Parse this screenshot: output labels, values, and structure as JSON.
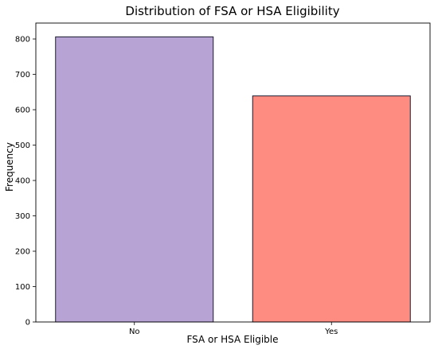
{
  "chart_data": {
    "type": "bar",
    "title": "Distribution of FSA or HSA Eligibility",
    "xlabel": "FSA or HSA Eligible",
    "ylabel": "Frequency",
    "categories": [
      "No",
      "Yes"
    ],
    "values": [
      806,
      639
    ],
    "colors": [
      "#b8a4d4",
      "#ff8c80"
    ],
    "edge_color": "#1a1a2e",
    "ylim": [
      0,
      845
    ],
    "yticks": [
      0,
      100,
      200,
      300,
      400,
      500,
      600,
      700,
      800
    ],
    "grid": false,
    "legend": "none"
  }
}
